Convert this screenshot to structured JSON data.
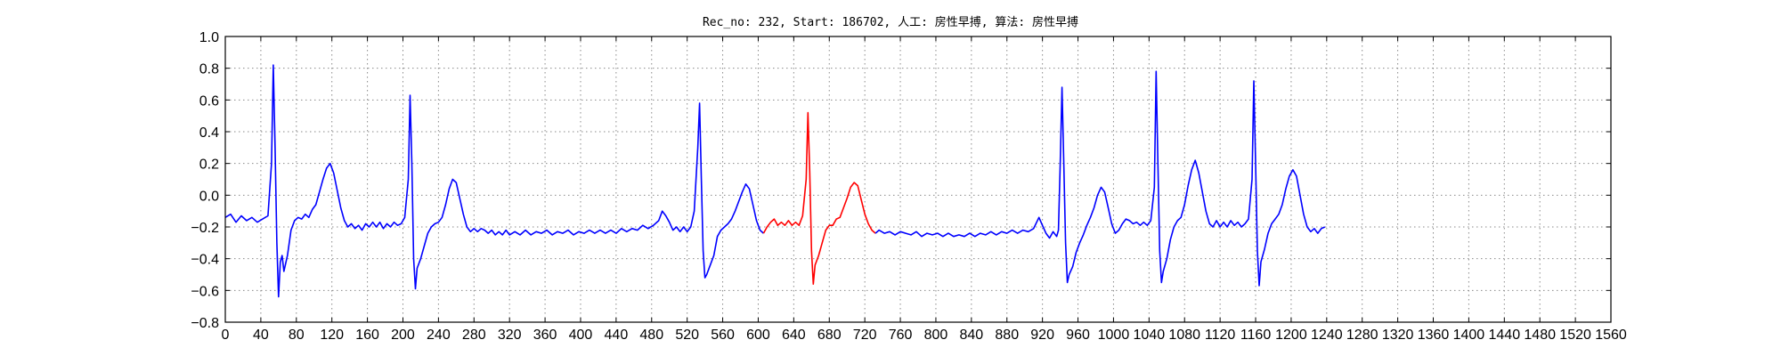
{
  "chart_data": {
    "type": "line",
    "title": "Rec_no: 232, Start: 186702, 人工: 房性早搏, 算法: 房性早搏",
    "xlabel": "",
    "ylabel": "",
    "xlim": [
      0,
      1560
    ],
    "ylim": [
      -0.8,
      1.0
    ],
    "yticks": [
      -0.8,
      -0.6,
      -0.4,
      -0.2,
      0.0,
      0.2,
      0.4,
      0.6,
      0.8,
      1.0
    ],
    "ytick_labels": [
      "−0.8",
      "−0.6",
      "−0.4",
      "−0.2",
      "0.0",
      "0.2",
      "0.4",
      "0.6",
      "0.8",
      "1.0"
    ],
    "xticks": [
      0,
      40,
      80,
      120,
      160,
      200,
      240,
      280,
      320,
      360,
      400,
      440,
      480,
      520,
      560,
      600,
      640,
      680,
      720,
      760,
      800,
      840,
      880,
      920,
      960,
      1000,
      1040,
      1080,
      1120,
      1160,
      1200,
      1240,
      1280,
      1320,
      1360,
      1400,
      1440,
      1480,
      1520,
      1560
    ],
    "xtick_labels": [
      "0",
      "40",
      "80",
      "120",
      "160",
      "200",
      "240",
      "280",
      "320",
      "360",
      "400",
      "440",
      "480",
      "520",
      "560",
      "600",
      "640",
      "680",
      "720",
      "760",
      "800",
      "840",
      "880",
      "920",
      "960",
      "1000",
      "1040",
      "1080",
      "1120",
      "1160",
      "1200",
      "1240",
      "1280",
      "1320",
      "1360",
      "1400",
      "1440",
      "1480",
      "1520",
      "1560"
    ],
    "grid": true,
    "series": [
      {
        "color": "#0000ff",
        "points": [
          [
            0,
            -0.14
          ],
          [
            6,
            -0.12
          ],
          [
            12,
            -0.17
          ],
          [
            18,
            -0.13
          ],
          [
            24,
            -0.16
          ],
          [
            30,
            -0.14
          ],
          [
            36,
            -0.17
          ],
          [
            42,
            -0.15
          ],
          [
            48,
            -0.13
          ],
          [
            52,
            0.2
          ],
          [
            54,
            0.82
          ],
          [
            56,
            0.3
          ],
          [
            58,
            -0.3
          ],
          [
            60,
            -0.64
          ],
          [
            62,
            -0.42
          ],
          [
            64,
            -0.38
          ],
          [
            66,
            -0.48
          ],
          [
            70,
            -0.38
          ],
          [
            74,
            -0.22
          ],
          [
            78,
            -0.16
          ],
          [
            82,
            -0.14
          ],
          [
            86,
            -0.15
          ],
          [
            90,
            -0.12
          ],
          [
            94,
            -0.14
          ],
          [
            98,
            -0.09
          ],
          [
            102,
            -0.06
          ],
          [
            106,
            0.02
          ],
          [
            110,
            0.1
          ],
          [
            114,
            0.17
          ],
          [
            118,
            0.2
          ],
          [
            122,
            0.14
          ],
          [
            126,
            0.03
          ],
          [
            130,
            -0.08
          ],
          [
            134,
            -0.16
          ],
          [
            138,
            -0.2
          ],
          [
            142,
            -0.18
          ],
          [
            146,
            -0.21
          ],
          [
            150,
            -0.19
          ],
          [
            154,
            -0.22
          ],
          [
            158,
            -0.18
          ],
          [
            162,
            -0.2
          ],
          [
            166,
            -0.17
          ],
          [
            170,
            -0.2
          ],
          [
            174,
            -0.17
          ],
          [
            178,
            -0.21
          ],
          [
            182,
            -0.18
          ],
          [
            186,
            -0.2
          ],
          [
            190,
            -0.17
          ],
          [
            194,
            -0.19
          ],
          [
            198,
            -0.18
          ],
          [
            202,
            -0.14
          ],
          [
            206,
            0.1
          ],
          [
            208,
            0.63
          ],
          [
            210,
            0.2
          ],
          [
            212,
            -0.4
          ],
          [
            214,
            -0.59
          ],
          [
            216,
            -0.46
          ],
          [
            220,
            -0.4
          ],
          [
            224,
            -0.32
          ],
          [
            228,
            -0.24
          ],
          [
            232,
            -0.2
          ],
          [
            236,
            -0.18
          ],
          [
            240,
            -0.17
          ],
          [
            244,
            -0.14
          ],
          [
            248,
            -0.06
          ],
          [
            252,
            0.04
          ],
          [
            256,
            0.1
          ],
          [
            260,
            0.08
          ],
          [
            264,
            -0.02
          ],
          [
            268,
            -0.12
          ],
          [
            272,
            -0.2
          ],
          [
            276,
            -0.23
          ],
          [
            280,
            -0.21
          ],
          [
            284,
            -0.23
          ],
          [
            288,
            -0.21
          ],
          [
            292,
            -0.22
          ],
          [
            296,
            -0.24
          ],
          [
            300,
            -0.22
          ],
          [
            304,
            -0.25
          ],
          [
            308,
            -0.23
          ],
          [
            312,
            -0.25
          ],
          [
            316,
            -0.22
          ],
          [
            320,
            -0.25
          ],
          [
            326,
            -0.23
          ],
          [
            332,
            -0.25
          ],
          [
            338,
            -0.22
          ],
          [
            344,
            -0.25
          ],
          [
            350,
            -0.23
          ],
          [
            356,
            -0.24
          ],
          [
            362,
            -0.22
          ],
          [
            368,
            -0.25
          ],
          [
            374,
            -0.23
          ],
          [
            380,
            -0.24
          ],
          [
            386,
            -0.22
          ],
          [
            392,
            -0.25
          ],
          [
            398,
            -0.23
          ],
          [
            404,
            -0.24
          ],
          [
            410,
            -0.22
          ],
          [
            416,
            -0.24
          ],
          [
            422,
            -0.22
          ],
          [
            428,
            -0.24
          ],
          [
            434,
            -0.22
          ],
          [
            440,
            -0.24
          ],
          [
            446,
            -0.21
          ],
          [
            452,
            -0.23
          ],
          [
            458,
            -0.21
          ],
          [
            464,
            -0.22
          ],
          [
            470,
            -0.19
          ],
          [
            476,
            -0.21
          ],
          [
            482,
            -0.19
          ],
          [
            488,
            -0.16
          ],
          [
            492,
            -0.1
          ],
          [
            496,
            -0.13
          ],
          [
            500,
            -0.17
          ],
          [
            504,
            -0.22
          ],
          [
            508,
            -0.2
          ],
          [
            512,
            -0.23
          ],
          [
            516,
            -0.2
          ],
          [
            520,
            -0.23
          ],
          [
            524,
            -0.2
          ],
          [
            528,
            -0.1
          ],
          [
            532,
            0.3
          ],
          [
            534,
            0.58
          ],
          [
            536,
            0.1
          ],
          [
            538,
            -0.35
          ],
          [
            540,
            -0.52
          ],
          [
            542,
            -0.5
          ],
          [
            546,
            -0.44
          ],
          [
            550,
            -0.38
          ],
          [
            554,
            -0.26
          ],
          [
            558,
            -0.22
          ],
          [
            562,
            -0.2
          ],
          [
            566,
            -0.18
          ],
          [
            570,
            -0.15
          ],
          [
            574,
            -0.1
          ],
          [
            578,
            -0.04
          ],
          [
            582,
            0.02
          ],
          [
            586,
            0.07
          ],
          [
            590,
            0.04
          ],
          [
            594,
            -0.06
          ],
          [
            598,
            -0.16
          ],
          [
            602,
            -0.22
          ],
          [
            606,
            -0.24
          ]
        ]
      },
      {
        "color": "#ff0000",
        "points": [
          [
            606,
            -0.24
          ],
          [
            610,
            -0.2
          ],
          [
            614,
            -0.17
          ],
          [
            618,
            -0.15
          ],
          [
            622,
            -0.19
          ],
          [
            626,
            -0.17
          ],
          [
            630,
            -0.19
          ],
          [
            634,
            -0.16
          ],
          [
            638,
            -0.19
          ],
          [
            642,
            -0.17
          ],
          [
            646,
            -0.19
          ],
          [
            650,
            -0.13
          ],
          [
            654,
            0.1
          ],
          [
            656,
            0.52
          ],
          [
            658,
            0.15
          ],
          [
            660,
            -0.35
          ],
          [
            662,
            -0.56
          ],
          [
            664,
            -0.44
          ],
          [
            668,
            -0.38
          ],
          [
            672,
            -0.3
          ],
          [
            676,
            -0.22
          ],
          [
            680,
            -0.19
          ],
          [
            684,
            -0.19
          ],
          [
            688,
            -0.15
          ],
          [
            692,
            -0.14
          ],
          [
            696,
            -0.08
          ],
          [
            700,
            -0.02
          ],
          [
            704,
            0.05
          ],
          [
            708,
            0.08
          ],
          [
            712,
            0.06
          ],
          [
            716,
            -0.03
          ],
          [
            720,
            -0.12
          ],
          [
            724,
            -0.18
          ],
          [
            728,
            -0.22
          ],
          [
            732,
            -0.24
          ]
        ]
      },
      {
        "color": "#0000ff",
        "points": [
          [
            732,
            -0.24
          ],
          [
            736,
            -0.22
          ],
          [
            742,
            -0.24
          ],
          [
            748,
            -0.23
          ],
          [
            754,
            -0.25
          ],
          [
            760,
            -0.23
          ],
          [
            766,
            -0.24
          ],
          [
            772,
            -0.25
          ],
          [
            778,
            -0.23
          ],
          [
            784,
            -0.26
          ],
          [
            790,
            -0.24
          ],
          [
            796,
            -0.25
          ],
          [
            802,
            -0.24
          ],
          [
            808,
            -0.26
          ],
          [
            814,
            -0.24
          ],
          [
            820,
            -0.26
          ],
          [
            826,
            -0.25
          ],
          [
            832,
            -0.26
          ],
          [
            838,
            -0.24
          ],
          [
            844,
            -0.26
          ],
          [
            850,
            -0.24
          ],
          [
            856,
            -0.25
          ],
          [
            862,
            -0.23
          ],
          [
            868,
            -0.25
          ],
          [
            874,
            -0.23
          ],
          [
            880,
            -0.24
          ],
          [
            886,
            -0.22
          ],
          [
            892,
            -0.24
          ],
          [
            898,
            -0.22
          ],
          [
            904,
            -0.23
          ],
          [
            910,
            -0.21
          ],
          [
            916,
            -0.14
          ],
          [
            920,
            -0.19
          ],
          [
            924,
            -0.24
          ],
          [
            928,
            -0.27
          ],
          [
            932,
            -0.23
          ],
          [
            936,
            -0.26
          ],
          [
            938,
            -0.22
          ],
          [
            940,
            0.2
          ],
          [
            942,
            0.68
          ],
          [
            944,
            0.2
          ],
          [
            946,
            -0.3
          ],
          [
            948,
            -0.55
          ],
          [
            950,
            -0.5
          ],
          [
            954,
            -0.45
          ],
          [
            958,
            -0.36
          ],
          [
            962,
            -0.3
          ],
          [
            966,
            -0.25
          ],
          [
            970,
            -0.19
          ],
          [
            974,
            -0.14
          ],
          [
            978,
            -0.08
          ],
          [
            982,
            0.0
          ],
          [
            986,
            0.05
          ],
          [
            990,
            0.02
          ],
          [
            994,
            -0.08
          ],
          [
            998,
            -0.18
          ],
          [
            1002,
            -0.24
          ],
          [
            1006,
            -0.22
          ],
          [
            1010,
            -0.18
          ],
          [
            1014,
            -0.15
          ],
          [
            1018,
            -0.16
          ],
          [
            1022,
            -0.18
          ],
          [
            1026,
            -0.17
          ],
          [
            1030,
            -0.19
          ],
          [
            1034,
            -0.17
          ],
          [
            1038,
            -0.19
          ],
          [
            1042,
            -0.16
          ],
          [
            1046,
            0.05
          ],
          [
            1048,
            0.78
          ],
          [
            1050,
            0.2
          ],
          [
            1052,
            -0.35
          ],
          [
            1054,
            -0.55
          ],
          [
            1056,
            -0.48
          ],
          [
            1060,
            -0.4
          ],
          [
            1064,
            -0.28
          ],
          [
            1068,
            -0.2
          ],
          [
            1072,
            -0.16
          ],
          [
            1076,
            -0.14
          ],
          [
            1080,
            -0.06
          ],
          [
            1084,
            0.06
          ],
          [
            1088,
            0.16
          ],
          [
            1092,
            0.22
          ],
          [
            1096,
            0.14
          ],
          [
            1100,
            0.02
          ],
          [
            1104,
            -0.1
          ],
          [
            1108,
            -0.18
          ],
          [
            1112,
            -0.2
          ],
          [
            1116,
            -0.16
          ],
          [
            1120,
            -0.2
          ],
          [
            1124,
            -0.17
          ],
          [
            1128,
            -0.2
          ],
          [
            1132,
            -0.16
          ],
          [
            1136,
            -0.19
          ],
          [
            1140,
            -0.17
          ],
          [
            1144,
            -0.2
          ],
          [
            1148,
            -0.18
          ],
          [
            1152,
            -0.15
          ],
          [
            1156,
            0.1
          ],
          [
            1158,
            0.72
          ],
          [
            1160,
            0.2
          ],
          [
            1162,
            -0.35
          ],
          [
            1164,
            -0.57
          ],
          [
            1166,
            -0.42
          ],
          [
            1170,
            -0.34
          ],
          [
            1174,
            -0.24
          ],
          [
            1178,
            -0.18
          ],
          [
            1182,
            -0.15
          ],
          [
            1186,
            -0.12
          ],
          [
            1190,
            -0.06
          ],
          [
            1194,
            0.04
          ],
          [
            1198,
            0.12
          ],
          [
            1202,
            0.16
          ],
          [
            1206,
            0.12
          ],
          [
            1210,
            0.0
          ],
          [
            1214,
            -0.12
          ],
          [
            1218,
            -0.2
          ],
          [
            1222,
            -0.23
          ],
          [
            1226,
            -0.21
          ],
          [
            1230,
            -0.24
          ],
          [
            1234,
            -0.21
          ],
          [
            1238,
            -0.2
          ]
        ]
      }
    ]
  }
}
